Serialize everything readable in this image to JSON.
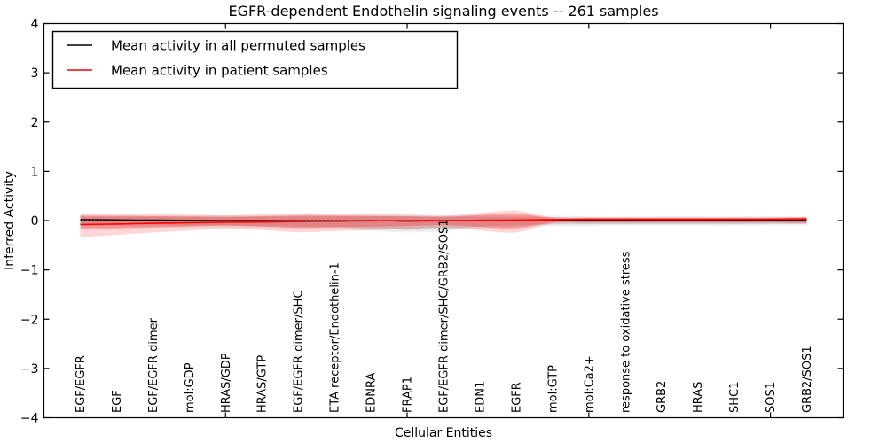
{
  "window": {
    "title": "EGFR-dependent Endothelin signaling events -- 261 samples"
  },
  "colors": {
    "patient_line": "#ff0000",
    "permuted_line": "#000000",
    "patient_band_inner": "rgba(255,0,0,0.25)",
    "patient_band_outer": "rgba(255,0,0,0.16)",
    "permuted_band_inner": "rgba(0,0,0,0.12)",
    "permuted_band_outer": "rgba(0,0,0,0.06)",
    "frame": "#000000",
    "background": "#ffffff"
  },
  "chart_data": {
    "type": "line",
    "title": "EGFR-dependent Endothelin signaling events -- 261 samples",
    "xlabel": "Cellular Entities",
    "ylabel": "Inferred Activity",
    "ylim": [
      -4,
      4
    ],
    "ytick_values": [
      4,
      3,
      2,
      1,
      0,
      -1,
      -2,
      -3,
      -4
    ],
    "ytick_labels": [
      "4",
      "3",
      "2",
      "1",
      "0",
      "−1",
      "−2",
      "−3",
      "−4"
    ],
    "xtick_major_positions": [
      5,
      10,
      15,
      20
    ],
    "grid": false,
    "legend_position": "upper left",
    "legend": {
      "items": [
        {
          "label": "Mean activity in all permuted samples",
          "color": "#000000"
        },
        {
          "label": "Mean activity in patient samples",
          "color": "#ff0000"
        }
      ]
    },
    "categories": [
      "EGF/EGFR",
      "EGF",
      "EGF/EGFR dimer",
      "mol:GDP",
      "HRAS/GDP",
      "HRAS/GTP",
      "EGF/EGFR dimer/SHC",
      "ETA receptor/Endothelin-1",
      "EDNRA",
      "FRAP1",
      "EGF/EGFR dimer/SHC/GRB2/SOS1",
      "EDN1",
      "EGFR",
      "mol:GTP",
      "mol:Ca2+",
      "response to oxidative stress",
      "GRB2",
      "HRAS",
      "SHC1",
      "SOS1",
      "GRB2/SOS1"
    ],
    "series": [
      {
        "name": "Mean activity in all permuted samples",
        "color": "#000000",
        "style": "solid",
        "width": 1.3,
        "values": [
          0.02,
          0.015,
          0.01,
          0.005,
          0.0,
          0.0,
          -0.005,
          -0.005,
          0.0,
          -0.01,
          -0.005,
          0.0,
          0.0,
          0.005,
          0.005,
          0.005,
          0.0,
          0.0,
          0.005,
          0.005,
          0.01
        ]
      },
      {
        "name": "Mean activity in patient samples",
        "color": "#ff0000",
        "style": "solid",
        "width": 1.6,
        "values": [
          -0.08,
          -0.07,
          -0.055,
          -0.045,
          -0.035,
          -0.03,
          -0.02,
          -0.012,
          -0.006,
          0.0,
          0.0,
          0.005,
          0.01,
          0.02,
          0.025,
          0.025,
          0.025,
          0.025,
          0.025,
          0.028,
          0.03
        ]
      },
      {
        "name": "zero-reference",
        "color": "#000000",
        "style": "dotted",
        "width": 1.2,
        "values": [
          0,
          0,
          0,
          0,
          0,
          0,
          0,
          0,
          0,
          0,
          0,
          0,
          0,
          0,
          0,
          0,
          0,
          0,
          0,
          0,
          0
        ]
      }
    ],
    "bands": [
      {
        "name": "permuted-spread-outer",
        "color": "rgba(0,0,0,0.06)",
        "upper": [
          0.11,
          0.11,
          0.11,
          0.11,
          0.11,
          0.11,
          0.115,
          0.115,
          0.12,
          0.12,
          0.115,
          0.11,
          0.105,
          0.1,
          0.095,
          0.09,
          0.09,
          0.09,
          0.09,
          0.09,
          0.095
        ],
        "lower": [
          -0.14,
          -0.14,
          -0.14,
          -0.14,
          -0.14,
          -0.15,
          -0.16,
          -0.17,
          -0.21,
          -0.24,
          -0.22,
          -0.16,
          -0.14,
          -0.115,
          -0.11,
          -0.105,
          -0.105,
          -0.105,
          -0.105,
          -0.1,
          -0.1
        ]
      },
      {
        "name": "permuted-spread-inner",
        "color": "rgba(0,0,0,0.12)",
        "upper": [
          0.08,
          0.08,
          0.08,
          0.08,
          0.08,
          0.08,
          0.085,
          0.085,
          0.09,
          0.09,
          0.085,
          0.08,
          0.075,
          0.07,
          0.065,
          0.065,
          0.065,
          0.065,
          0.065,
          0.065,
          0.065
        ],
        "lower": [
          -0.1,
          -0.1,
          -0.1,
          -0.1,
          -0.1,
          -0.11,
          -0.12,
          -0.13,
          -0.16,
          -0.19,
          -0.17,
          -0.12,
          -0.1,
          -0.08,
          -0.075,
          -0.075,
          -0.075,
          -0.075,
          -0.075,
          -0.07,
          -0.07
        ]
      },
      {
        "name": "patient-spread-outer",
        "color": "rgba(255,0,0,0.16)",
        "upper": [
          0.15,
          0.14,
          0.13,
          0.12,
          0.11,
          0.125,
          0.15,
          0.14,
          0.13,
          0.12,
          0.1,
          0.16,
          0.2,
          0.07,
          0.06,
          0.06,
          0.06,
          0.06,
          0.06,
          0.06,
          0.075
        ],
        "lower": [
          -0.33,
          -0.29,
          -0.24,
          -0.2,
          -0.17,
          -0.19,
          -0.235,
          -0.21,
          -0.195,
          -0.17,
          -0.14,
          -0.2,
          -0.24,
          -0.06,
          -0.05,
          -0.05,
          -0.05,
          -0.05,
          -0.05,
          -0.05,
          -0.065
        ]
      },
      {
        "name": "patient-spread-inner",
        "color": "rgba(255,0,0,0.25)",
        "upper": [
          0.1,
          0.095,
          0.09,
          0.085,
          0.08,
          0.09,
          0.105,
          0.1,
          0.095,
          0.085,
          0.075,
          0.115,
          0.145,
          0.05,
          0.045,
          0.045,
          0.045,
          0.045,
          0.045,
          0.045,
          0.055
        ],
        "lower": [
          -0.175,
          -0.16,
          -0.14,
          -0.12,
          -0.105,
          -0.12,
          -0.15,
          -0.135,
          -0.125,
          -0.11,
          -0.09,
          -0.13,
          -0.155,
          -0.04,
          -0.035,
          -0.035,
          -0.035,
          -0.035,
          -0.035,
          -0.035,
          -0.045
        ]
      }
    ]
  }
}
